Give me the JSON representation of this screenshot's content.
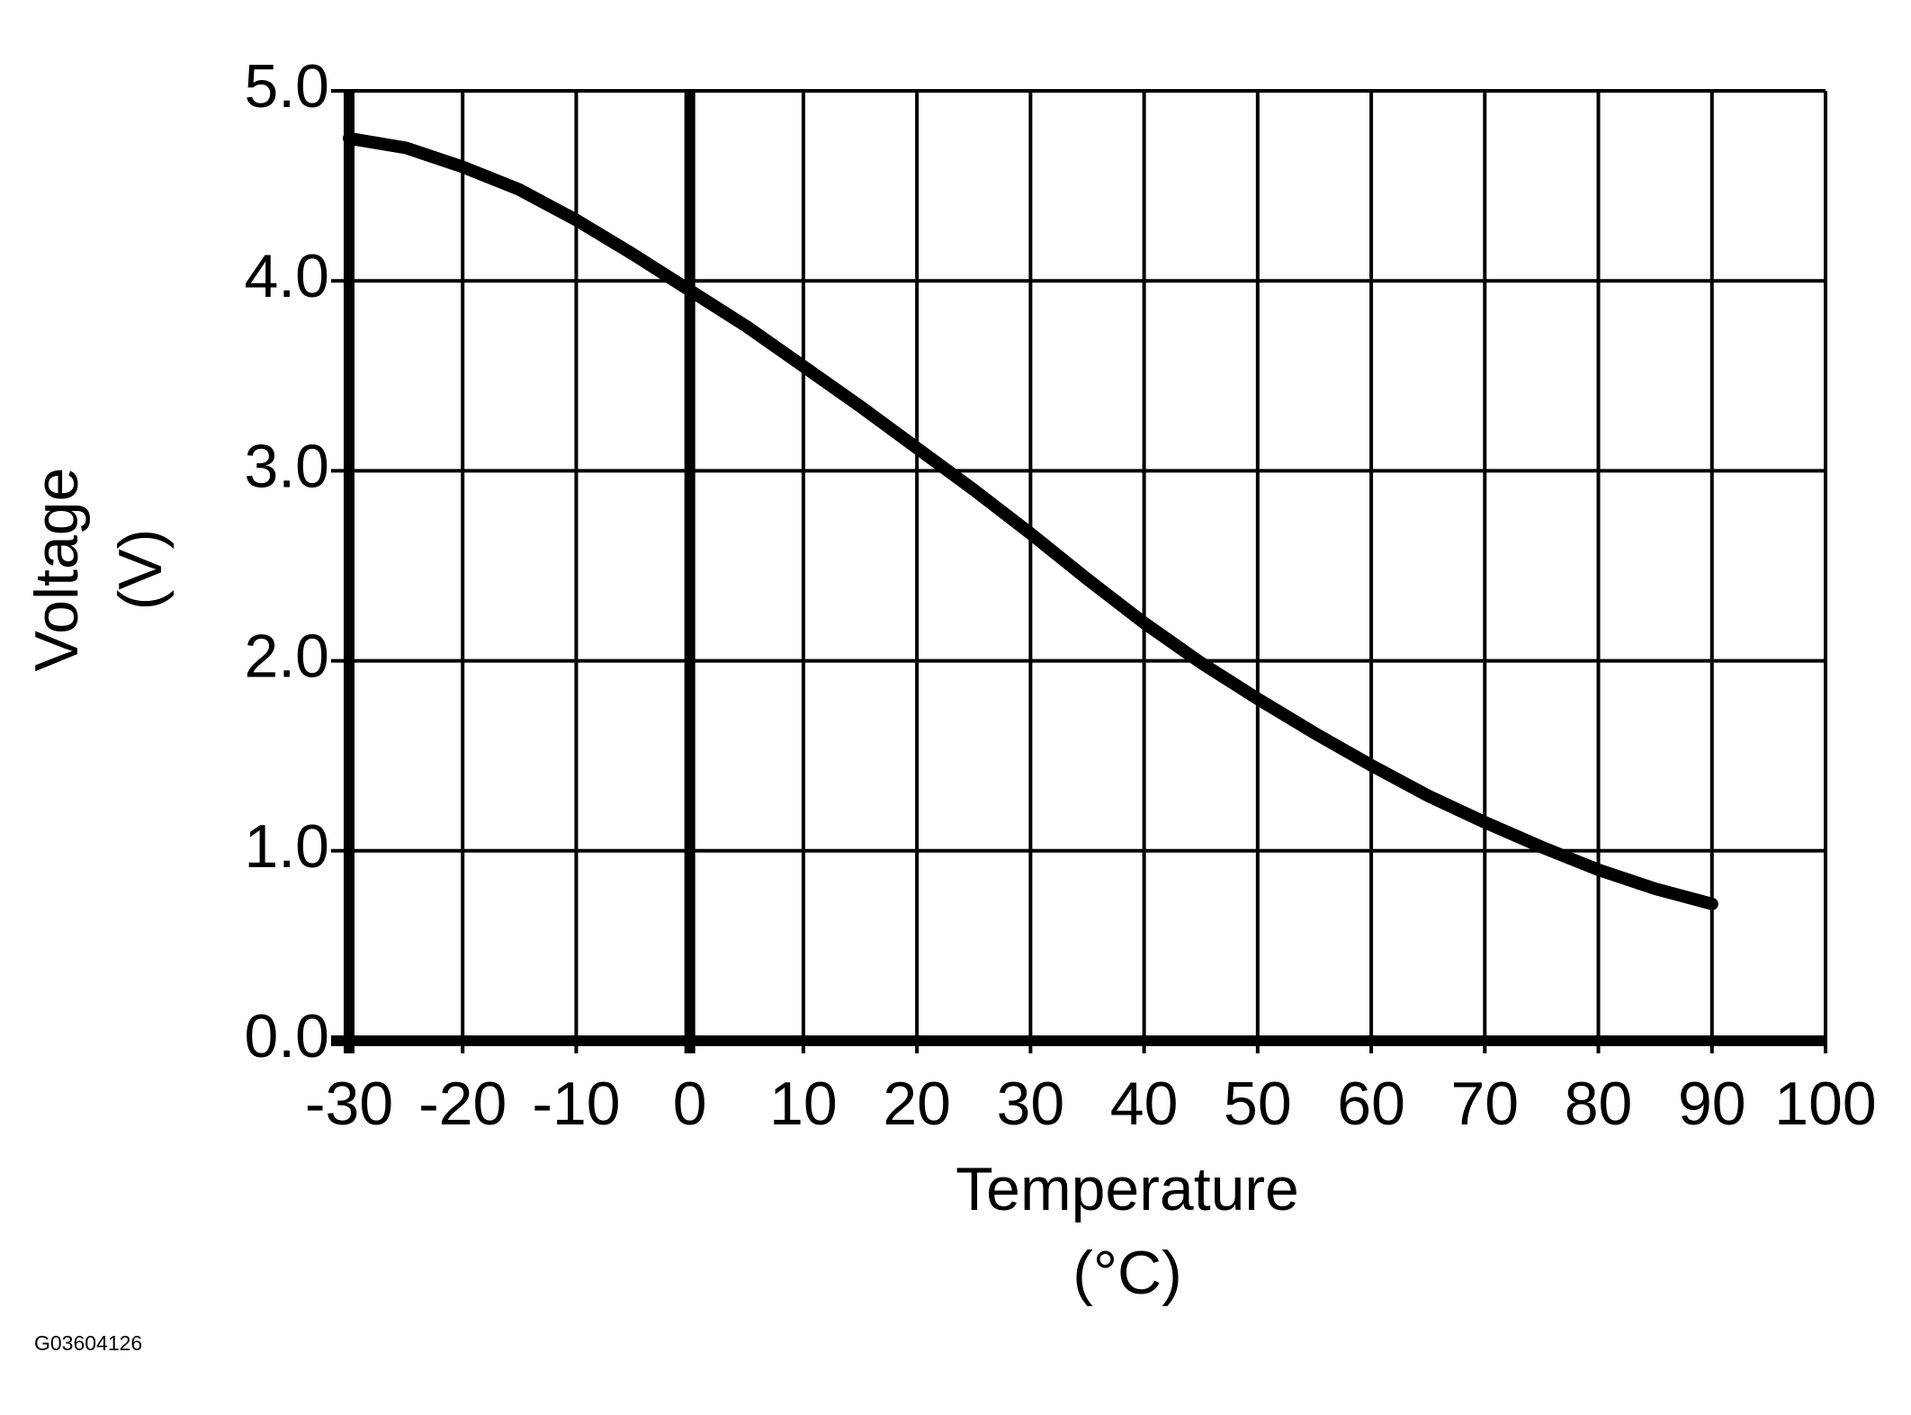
{
  "chart_data": {
    "type": "line",
    "x_label": [
      "Temperature",
      "(°C)"
    ],
    "y_label": [
      "Voltage",
      "(V)"
    ],
    "footnote": "G03604126",
    "x": [
      -30,
      -25,
      -20,
      -15,
      -10,
      -5,
      0,
      5,
      10,
      15,
      20,
      25,
      30,
      35,
      40,
      45,
      50,
      55,
      60,
      65,
      70,
      75,
      80,
      85,
      90
    ],
    "series": [
      {
        "name": "Voltage",
        "color": "#000000",
        "values": [
          4.75,
          4.7,
          4.6,
          4.48,
          4.32,
          4.14,
          3.95,
          3.76,
          3.55,
          3.34,
          3.12,
          2.9,
          2.67,
          2.43,
          2.2,
          1.99,
          1.8,
          1.62,
          1.45,
          1.29,
          1.15,
          1.02,
          0.9,
          0.8,
          0.72
        ]
      }
    ],
    "xlim": [
      -30,
      100
    ],
    "ylim": [
      0,
      5
    ],
    "xticks": [
      -30,
      -20,
      -10,
      0,
      10,
      20,
      30,
      40,
      50,
      60,
      70,
      80,
      90,
      100
    ],
    "yticks": [
      {
        "value": 0,
        "label": "0.0"
      },
      {
        "value": 1,
        "label": "1.0"
      },
      {
        "value": 2,
        "label": "2.0"
      },
      {
        "value": 3,
        "label": "3.0"
      },
      {
        "value": 4,
        "label": "4.0"
      },
      {
        "value": 5,
        "label": "5.0"
      }
    ],
    "grid": true
  }
}
